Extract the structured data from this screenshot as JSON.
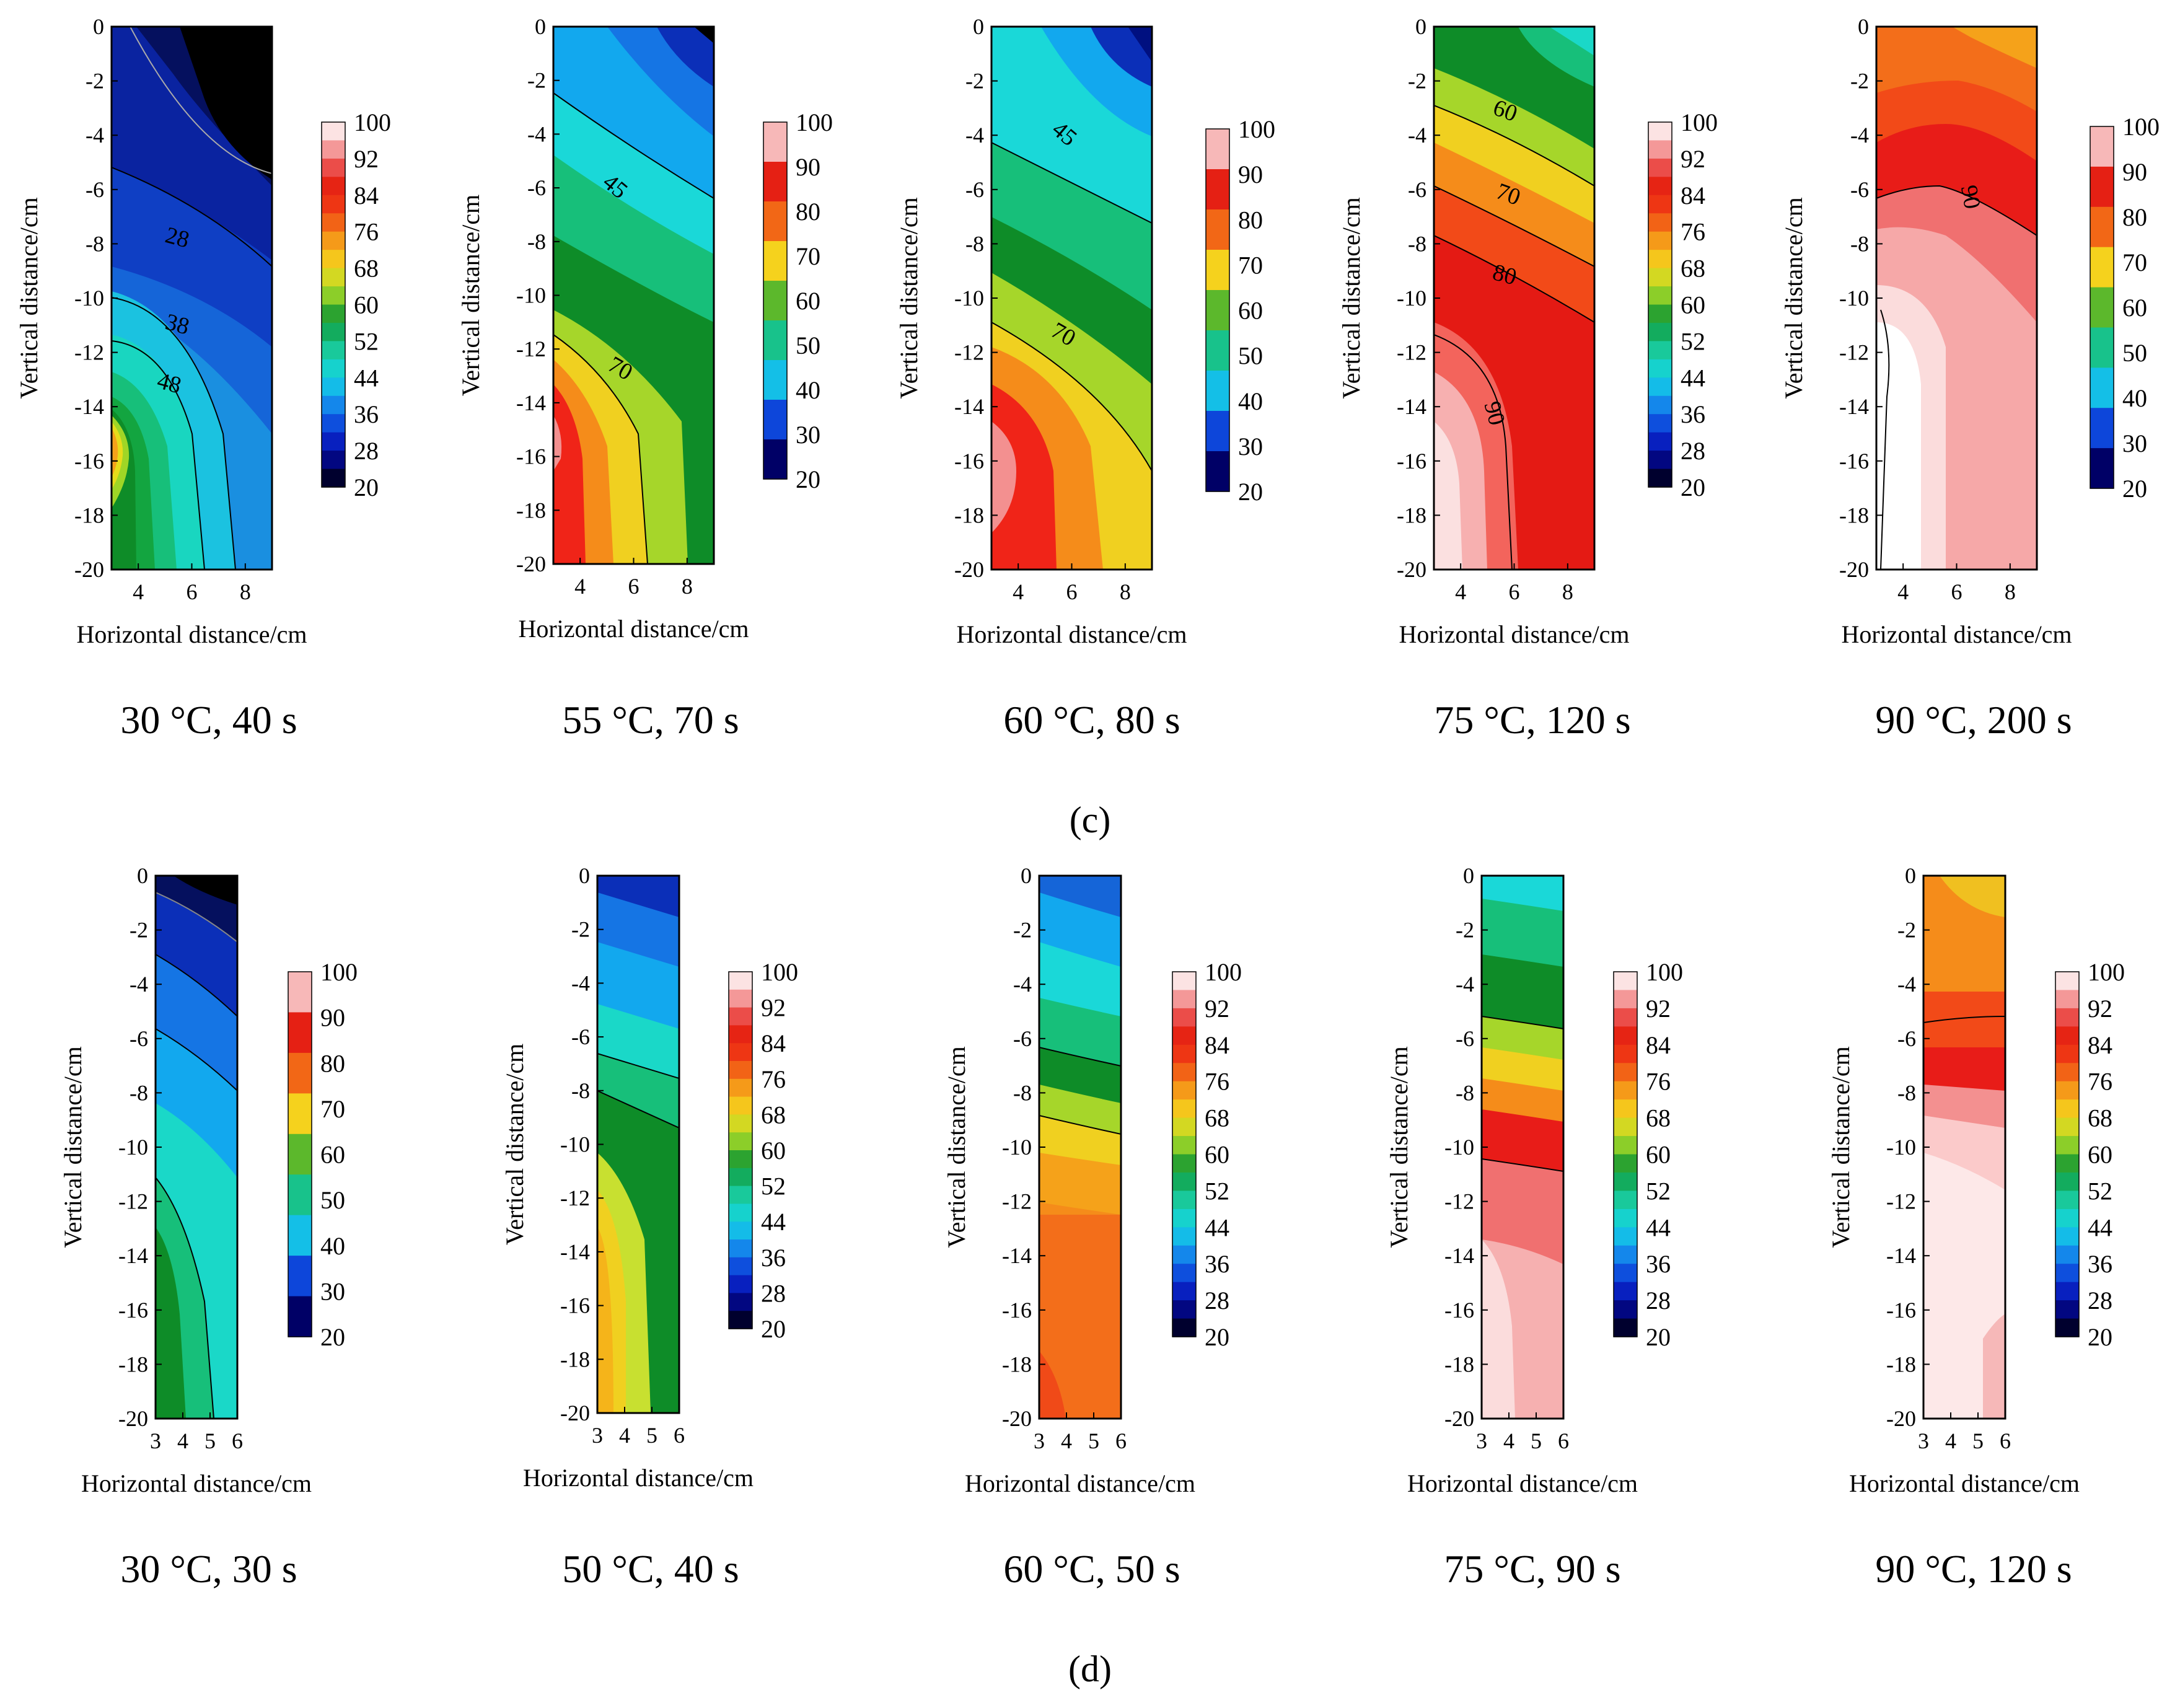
{
  "figure": {
    "row_labels": [
      "(c)",
      "(d)"
    ],
    "x_axis_label": "Horizontal distance/cm",
    "y_axis_label": "Vertical distance/cm"
  },
  "chart_data": [
    {
      "type": "heatmap",
      "caption": "30 °C, 40 s",
      "xlabel": "Horizontal distance/cm",
      "ylabel": "Vertical distance/cm",
      "x_ticks": [
        "4",
        "6",
        "8"
      ],
      "xlim": [
        3,
        9
      ],
      "y_ticks": [
        "0",
        "-2",
        "-4",
        "-6",
        "-8",
        "-10",
        "-12",
        "-14",
        "-16",
        "-18",
        "-20"
      ],
      "ylim": [
        -20,
        0
      ],
      "colorbar": {
        "min": 20,
        "max": 100,
        "ticks": [
          "100",
          "92",
          "84",
          "76",
          "68",
          "60",
          "52",
          "44",
          "36",
          "28",
          "20"
        ]
      },
      "contour_labels": [
        "28",
        "38",
        "48"
      ]
    },
    {
      "type": "heatmap",
      "caption": "55 °C, 70 s",
      "xlabel": "Horizontal distance/cm",
      "ylabel": "Vertical distance/cm",
      "x_ticks": [
        "4",
        "6",
        "8"
      ],
      "xlim": [
        3,
        9
      ],
      "y_ticks": [
        "0",
        "-2",
        "-4",
        "-6",
        "-8",
        "-10",
        "-12",
        "-14",
        "-16",
        "-18",
        "-20"
      ],
      "ylim": [
        -20,
        0
      ],
      "colorbar": {
        "min": 20,
        "max": 100,
        "ticks": [
          "100",
          "90",
          "80",
          "70",
          "60",
          "50",
          "40",
          "30",
          "20"
        ]
      },
      "contour_labels": [
        "45",
        "70"
      ]
    },
    {
      "type": "heatmap",
      "caption": "60 °C, 80 s",
      "xlabel": "Horizontal distance/cm",
      "ylabel": "Vertical distance/cm",
      "x_ticks": [
        "4",
        "6",
        "8"
      ],
      "xlim": [
        3,
        9
      ],
      "y_ticks": [
        "0",
        "-2",
        "-4",
        "-6",
        "-8",
        "-10",
        "-12",
        "-14",
        "-16",
        "-18",
        "-20"
      ],
      "ylim": [
        -20,
        0
      ],
      "colorbar": {
        "min": 20,
        "max": 100,
        "ticks": [
          "100",
          "90",
          "80",
          "70",
          "60",
          "50",
          "40",
          "30",
          "20"
        ]
      },
      "contour_labels": [
        "45",
        "70"
      ]
    },
    {
      "type": "heatmap",
      "caption": "75 °C, 120 s",
      "xlabel": "Horizontal distance/cm",
      "ylabel": "Vertical distance/cm",
      "x_ticks": [
        "4",
        "6",
        "8"
      ],
      "xlim": [
        3,
        9
      ],
      "y_ticks": [
        "0",
        "-2",
        "-4",
        "-6",
        "-8",
        "-10",
        "-12",
        "-14",
        "-16",
        "-18",
        "-20"
      ],
      "ylim": [
        -20,
        0
      ],
      "colorbar": {
        "min": 20,
        "max": 100,
        "ticks": [
          "100",
          "92",
          "84",
          "76",
          "68",
          "60",
          "52",
          "44",
          "36",
          "28",
          "20"
        ]
      },
      "contour_labels": [
        "60",
        "70",
        "80",
        "90"
      ]
    },
    {
      "type": "heatmap",
      "caption": "90 °C, 200 s",
      "xlabel": "Horizontal distance/cm",
      "ylabel": "Vertical distance/cm",
      "x_ticks": [
        "4",
        "6",
        "8"
      ],
      "xlim": [
        3,
        9
      ],
      "y_ticks": [
        "0",
        "-2",
        "-4",
        "-6",
        "-8",
        "-10",
        "-12",
        "-14",
        "-16",
        "-18",
        "-20"
      ],
      "ylim": [
        -20,
        0
      ],
      "colorbar": {
        "min": 20,
        "max": 100,
        "ticks": [
          "100",
          "90",
          "80",
          "70",
          "60",
          "50",
          "40",
          "30",
          "20"
        ]
      },
      "contour_labels": [
        "90"
      ]
    },
    {
      "type": "heatmap",
      "caption": "30 °C, 30 s",
      "xlabel": "Horizontal distance/cm",
      "ylabel": "Vertical distance/cm",
      "x_ticks": [
        "3",
        "4",
        "5",
        "6"
      ],
      "xlim": [
        3,
        6
      ],
      "y_ticks": [
        "0",
        "-2",
        "-4",
        "-6",
        "-8",
        "-10",
        "-12",
        "-14",
        "-16",
        "-18",
        "-20"
      ],
      "ylim": [
        -20,
        0
      ],
      "colorbar": {
        "min": 20,
        "max": 100,
        "ticks": [
          "100",
          "90",
          "80",
          "70",
          "60",
          "50",
          "40",
          "30",
          "20"
        ]
      },
      "contour_labels": []
    },
    {
      "type": "heatmap",
      "caption": "50 °C, 40 s",
      "xlabel": "Horizontal distance/cm",
      "ylabel": "Vertical distance/cm",
      "x_ticks": [
        "3",
        "4",
        "5",
        "6"
      ],
      "xlim": [
        3,
        6
      ],
      "y_ticks": [
        "0",
        "-2",
        "-4",
        "-6",
        "-8",
        "-10",
        "-12",
        "-14",
        "-16",
        "-18",
        "-20"
      ],
      "ylim": [
        -20,
        0
      ],
      "colorbar": {
        "min": 20,
        "max": 100,
        "ticks": [
          "100",
          "92",
          "84",
          "76",
          "68",
          "60",
          "52",
          "44",
          "36",
          "28",
          "20"
        ]
      },
      "contour_labels": []
    },
    {
      "type": "heatmap",
      "caption": "60 °C, 50 s",
      "xlabel": "Horizontal distance/cm",
      "ylabel": "Vertical distance/cm",
      "x_ticks": [
        "3",
        "4",
        "5",
        "6"
      ],
      "xlim": [
        3,
        6
      ],
      "y_ticks": [
        "0",
        "-2",
        "-4",
        "-6",
        "-8",
        "-10",
        "-12",
        "-14",
        "-16",
        "-18",
        "-20"
      ],
      "ylim": [
        -20,
        0
      ],
      "colorbar": {
        "min": 20,
        "max": 100,
        "ticks": [
          "100",
          "92",
          "84",
          "76",
          "68",
          "60",
          "52",
          "44",
          "36",
          "28",
          "20"
        ]
      },
      "contour_labels": []
    },
    {
      "type": "heatmap",
      "caption": "75 °C, 90 s",
      "xlabel": "Horizontal distance/cm",
      "ylabel": "Vertical distance/cm",
      "x_ticks": [
        "3",
        "4",
        "5",
        "6"
      ],
      "xlim": [
        3,
        6
      ],
      "y_ticks": [
        "0",
        "-2",
        "-4",
        "-6",
        "-8",
        "-10",
        "-12",
        "-14",
        "-16",
        "-18",
        "-20"
      ],
      "ylim": [
        -20,
        0
      ],
      "colorbar": {
        "min": 20,
        "max": 100,
        "ticks": [
          "100",
          "92",
          "84",
          "76",
          "68",
          "60",
          "52",
          "44",
          "36",
          "28",
          "20"
        ]
      },
      "contour_labels": []
    },
    {
      "type": "heatmap",
      "caption": "90 °C, 120 s",
      "xlabel": "Horizontal distance/cm",
      "ylabel": "Vertical distance/cm",
      "x_ticks": [
        "3",
        "4",
        "5",
        "6"
      ],
      "xlim": [
        3,
        6
      ],
      "y_ticks": [
        "0",
        "-2",
        "-4",
        "-6",
        "-8",
        "-10",
        "-12",
        "-14",
        "-16",
        "-18",
        "-20"
      ],
      "ylim": [
        -20,
        0
      ],
      "colorbar": {
        "min": 20,
        "max": 100,
        "ticks": [
          "100",
          "92",
          "84",
          "76",
          "68",
          "60",
          "52",
          "44",
          "36",
          "28",
          "20"
        ]
      },
      "contour_labels": []
    }
  ]
}
